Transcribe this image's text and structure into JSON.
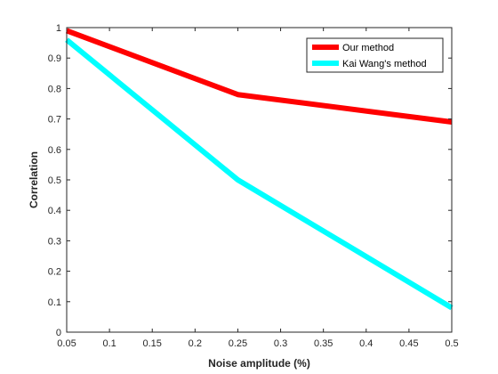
{
  "chart_data": {
    "type": "line",
    "title": "",
    "xlabel": "Noise amplitude (%)",
    "ylabel": "Correlation",
    "xlim": [
      0.05,
      0.5
    ],
    "ylim": [
      0,
      1
    ],
    "xticks": [
      0.05,
      0.1,
      0.15,
      0.2,
      0.25,
      0.3,
      0.35,
      0.4,
      0.45,
      0.5
    ],
    "yticks": [
      0,
      0.1,
      0.2,
      0.3,
      0.4,
      0.5,
      0.6,
      0.7,
      0.8,
      0.9,
      1
    ],
    "xtick_labels": [
      "0.05",
      "0.1",
      "0.15",
      "0.2",
      "0.25",
      "0.3",
      "0.35",
      "0.4",
      "0.45",
      "0.5"
    ],
    "ytick_labels": [
      "0",
      "0.1",
      "0.2",
      "0.3",
      "0.4",
      "0.5",
      "0.6",
      "0.7",
      "0.8",
      "0.9",
      "1"
    ],
    "grid": false,
    "legend_position": "top-right",
    "series": [
      {
        "name": "Our method",
        "color": "#ff0000",
        "x": [
          0.05,
          0.25,
          0.5
        ],
        "y": [
          0.99,
          0.78,
          0.69
        ]
      },
      {
        "name": "Kai Wang's method",
        "color": "#00ffff",
        "x": [
          0.05,
          0.25,
          0.5
        ],
        "y": [
          0.96,
          0.5,
          0.08
        ]
      }
    ]
  }
}
